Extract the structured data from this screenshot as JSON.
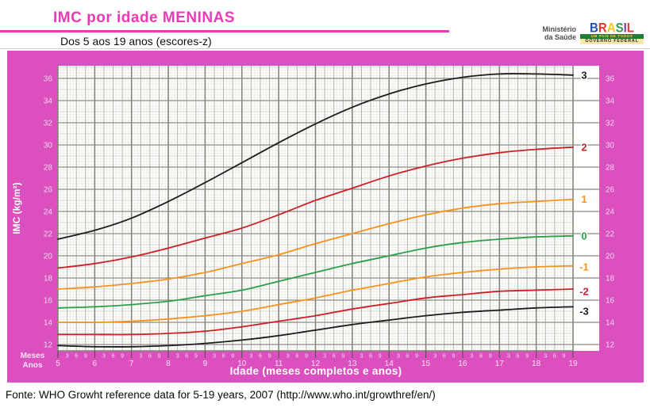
{
  "header": {
    "title": "IMC por idade MENINAS",
    "subtitle": "Dos 5 aos 19 anos (escores-z)"
  },
  "logo": {
    "ministry_line1": "Ministério",
    "ministry_line2": "da Saúde",
    "brasil_letters": [
      {
        "ch": "B",
        "color": "#2456a4"
      },
      {
        "ch": "R",
        "color": "#e03a2f"
      },
      {
        "ch": "A",
        "color": "#f6c51f"
      },
      {
        "ch": "S",
        "color": "#2e9e49"
      },
      {
        "ch": "I",
        "color": "#7b3fa0"
      },
      {
        "ch": "L",
        "color": "#e03a2f"
      }
    ],
    "tagline": "UM PAÍS DE TODOS",
    "government": "GOVERNO FEDERAL"
  },
  "chart_data": {
    "type": "line",
    "title": "IMC por idade MENINAS — escores-z",
    "xlabel": "Idade (meses completos e anos)",
    "ylabel": "IMC (kg/m²)",
    "row_label_months": "Meses",
    "row_label_years": "Anos",
    "x_years": [
      5,
      6,
      7,
      8,
      9,
      10,
      11,
      12,
      13,
      14,
      15,
      16,
      17,
      18,
      19
    ],
    "month_tick_labels": [
      "3",
      "6",
      "9"
    ],
    "xlim": [
      5,
      19.71
    ],
    "ylim": [
      11.43,
      37.14
    ],
    "yticks": [
      12,
      14,
      16,
      18,
      20,
      22,
      24,
      26,
      28,
      30,
      32,
      34,
      36
    ],
    "grid": true,
    "legend_position": "right-of-curves",
    "series": [
      {
        "name": "3",
        "zscore": 3,
        "color": "#1c1c1c",
        "label_y": 36.3,
        "values": [
          21.5,
          22.3,
          23.4,
          24.9,
          26.6,
          28.4,
          30.2,
          31.9,
          33.4,
          34.6,
          35.5,
          36.1,
          36.4,
          36.4,
          36.3
        ]
      },
      {
        "name": "2",
        "zscore": 2,
        "color": "#cb2026",
        "label_y": 29.8,
        "values": [
          18.9,
          19.3,
          19.9,
          20.7,
          21.6,
          22.5,
          23.7,
          25.0,
          26.1,
          27.2,
          28.1,
          28.8,
          29.3,
          29.6,
          29.8
        ]
      },
      {
        "name": "1",
        "zscore": 1,
        "color": "#f6921e",
        "label_y": 25.1,
        "values": [
          17.0,
          17.2,
          17.5,
          17.9,
          18.5,
          19.3,
          20.1,
          21.1,
          22.0,
          22.9,
          23.7,
          24.3,
          24.7,
          24.9,
          25.1
        ]
      },
      {
        "name": "0",
        "zscore": 0,
        "color": "#2c9f49",
        "label_y": 21.8,
        "values": [
          15.3,
          15.4,
          15.6,
          15.9,
          16.4,
          16.9,
          17.7,
          18.5,
          19.3,
          20.0,
          20.7,
          21.2,
          21.5,
          21.7,
          21.8
        ]
      },
      {
        "name": "-1",
        "zscore": -1,
        "color": "#f6921e",
        "label_y": 19.0,
        "values": [
          14.0,
          14.0,
          14.1,
          14.3,
          14.6,
          15.0,
          15.6,
          16.2,
          16.9,
          17.5,
          18.1,
          18.5,
          18.8,
          19.0,
          19.1
        ]
      },
      {
        "name": "-2",
        "zscore": -2,
        "color": "#cb2026",
        "label_y": 16.8,
        "values": [
          12.9,
          12.9,
          12.9,
          13.0,
          13.2,
          13.6,
          14.1,
          14.6,
          15.2,
          15.7,
          16.2,
          16.5,
          16.8,
          16.9,
          17.0
        ]
      },
      {
        "name": "-3",
        "zscore": -3,
        "color": "#1c1c1c",
        "label_y": 15.0,
        "values": [
          11.9,
          11.8,
          11.8,
          11.9,
          12.1,
          12.4,
          12.8,
          13.3,
          13.8,
          14.2,
          14.6,
          14.9,
          15.1,
          15.3,
          15.4
        ]
      }
    ],
    "colors": {
      "panel_background": "#db50be",
      "plot_background": "#ffffff",
      "grid_major": "#8b8b80",
      "grid_quarter": "#b3b3a9",
      "grid_minor": "#e4e4dd",
      "axis_tick_text": "#f4d4ed",
      "axis_title_text": "#ffffff"
    }
  },
  "footer": {
    "source": "Fonte: WHO Growht reference data for 5-19 years, 2007 (http://www.who.int/growthref/en/)"
  }
}
